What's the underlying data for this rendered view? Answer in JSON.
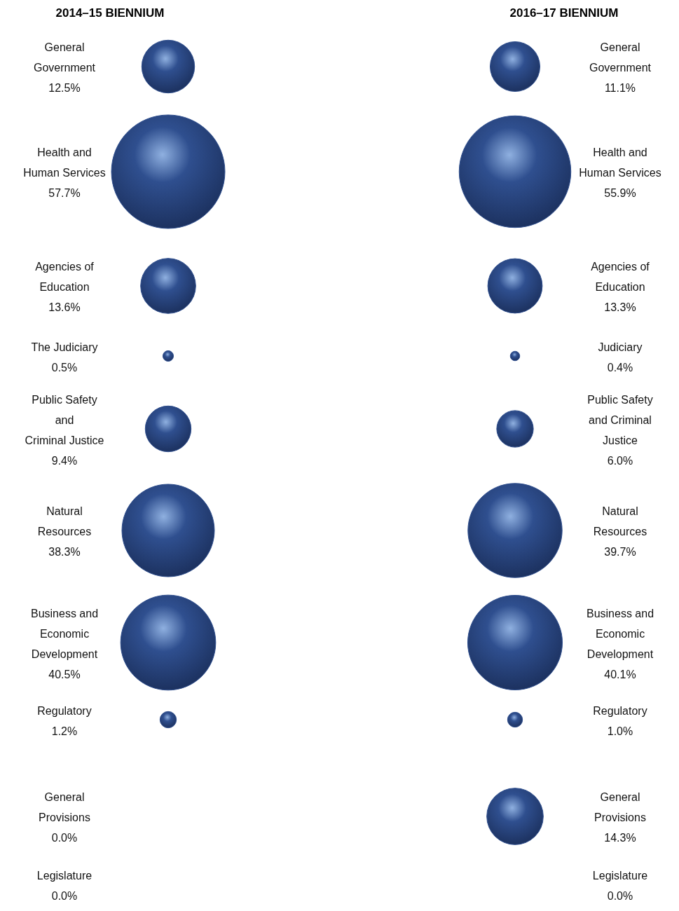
{
  "chart_data": [
    {
      "type": "other",
      "title": "2014–15 BIENNIUM",
      "color": "#2f4f8f",
      "data_labels": true,
      "categories": [
        "General\nGovernment",
        "Health and\nHuman Services",
        "Agencies of\nEducation",
        "The Judiciary",
        "Public Safety\nand\nCriminal Justice",
        "Natural\nResources",
        "Business and\nEconomic\nDevelopment",
        "Regulatory",
        "General\nProvisions",
        "Legislature"
      ],
      "values": [
        12.5,
        57.7,
        13.6,
        0.5,
        9.4,
        38.3,
        40.5,
        1.2,
        0.0,
        0.0
      ],
      "value_labels": [
        "12.5%",
        "57.7%",
        "13.6%",
        "0.5%",
        "9.4%",
        "38.3%",
        "40.5%",
        "1.2%",
        "0.0%",
        "0.0%"
      ]
    },
    {
      "type": "other",
      "title": "2016–17 BIENNIUM",
      "color": "#2f4f8f",
      "data_labels": true,
      "categories": [
        "General\nGovernment",
        "Health and\nHuman Services",
        "Agencies of\nEducation",
        "Judiciary",
        "Public Safety\nand Criminal\nJustice",
        "Natural\nResources",
        "Business and\nEconomic\nDevelopment",
        "Regulatory",
        "General\nProvisions",
        "Legislature"
      ],
      "values": [
        11.1,
        55.9,
        13.3,
        0.4,
        6.0,
        39.7,
        40.1,
        1.0,
        14.3,
        0.0
      ],
      "value_labels": [
        "11.1%",
        "55.9%",
        "13.3%",
        "0.4%",
        "6.0%",
        "39.7%",
        "40.1%",
        "1.0%",
        "14.3%",
        "0.0%"
      ]
    }
  ]
}
